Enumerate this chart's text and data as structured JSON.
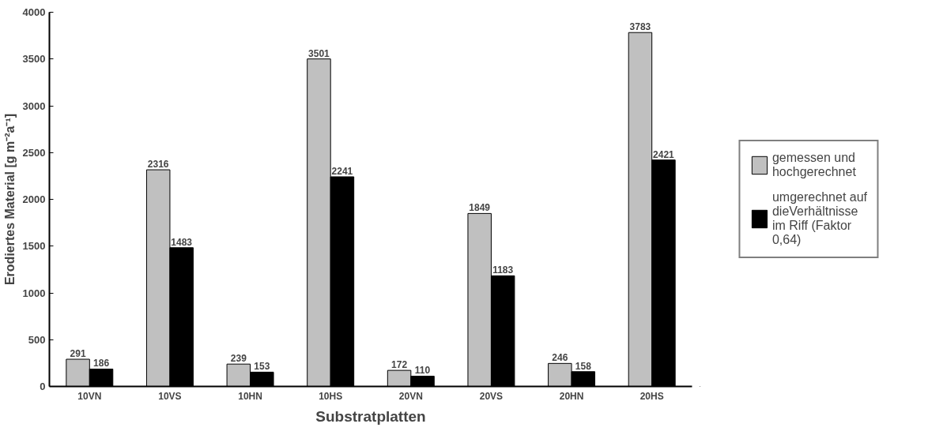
{
  "chart_data": {
    "type": "bar",
    "xlabel": "Substratplatten",
    "ylabel": "Erodiertes Material [g m⁻²a⁻¹]",
    "categories": [
      "10VN",
      "10VS",
      "10HN",
      "10HS",
      "20VN",
      "20VS",
      "20HN",
      "20HS"
    ],
    "series": [
      {
        "name": "gemessen und hochgerechnet",
        "color": "#c0c0c0",
        "values": [
          291,
          2316,
          239,
          3501,
          172,
          1849,
          246,
          3783
        ]
      },
      {
        "name": "umgerechnet auf dieVerhältnisse im Riff (Faktor 0,64)",
        "color": "#000000",
        "values": [
          186,
          1483,
          153,
          2241,
          110,
          1183,
          158,
          2421
        ]
      }
    ],
    "ylim": [
      0,
      4000
    ],
    "yticks": [
      0,
      500,
      1000,
      1500,
      2000,
      2500,
      3000,
      3500,
      4000
    ],
    "data_labels": true,
    "legend": "right",
    "grid": false
  }
}
